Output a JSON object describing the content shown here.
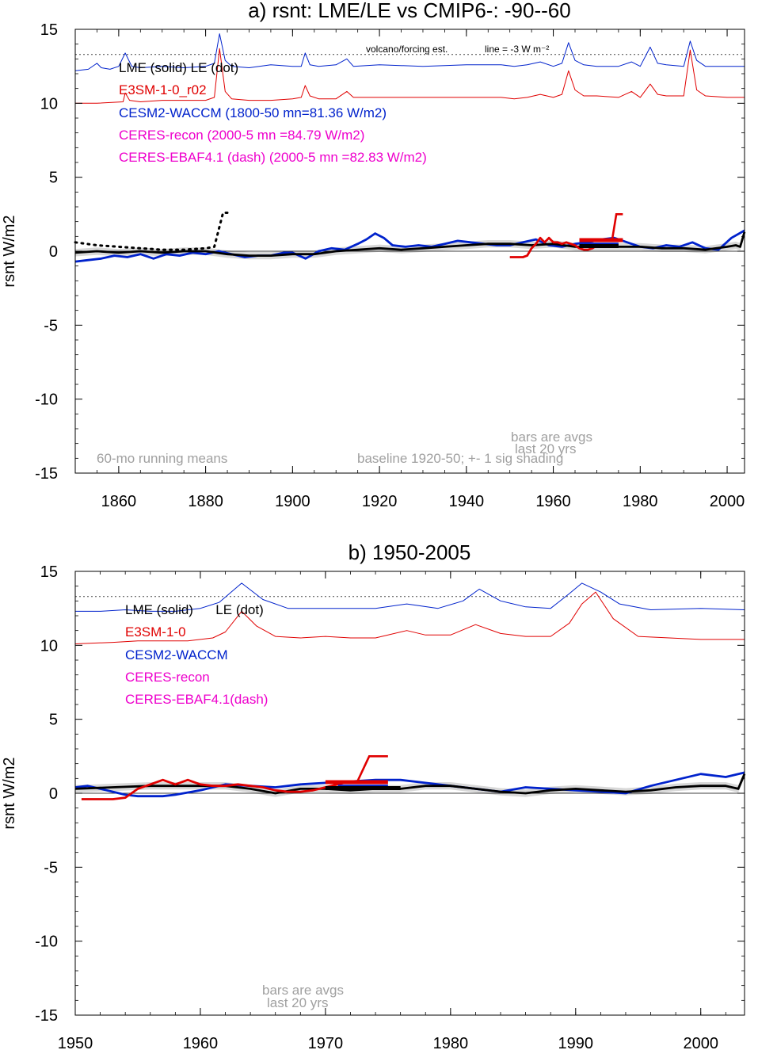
{
  "chart_data": [
    {
      "type": "line",
      "title": "a) rsnt: LME/LE vs CMIP6-: -90--60",
      "ylabel": "rsnt W/m2",
      "xlim": [
        1850,
        2004
      ],
      "ylim": [
        -15,
        15
      ],
      "x_ticks": [
        1860,
        1880,
        1900,
        1920,
        1940,
        1960,
        1980,
        2000
      ],
      "y_ticks": [
        15,
        10,
        5,
        0,
        -5,
        -10,
        -15
      ],
      "reference_line": {
        "value": 13.3,
        "style": "dotted"
      },
      "zero_line": 0,
      "legend": [
        {
          "text": "LME (solid)   LE (dot)",
          "color": "#000000"
        },
        {
          "text": "E3SM-1-0_r02",
          "color": "#e00000"
        },
        {
          "text": "CESM2-WACCM (1800-50 mn=81.36 W/m2)",
          "color": "#0022cc"
        },
        {
          "text": "CERES-recon (2000-5 mn =84.79 W/m2)",
          "color": "#ee00cc"
        },
        {
          "text": "CERES-EBAF4.1 (dash) (2000-5 mn =82.83 W/m2)",
          "color": "#ee00cc"
        }
      ],
      "notes": {
        "volcano": "volcano/forcing est.",
        "line": "line = -3 W m⁻²",
        "running": "60-mo running means",
        "bars1": "bars are avgs",
        "bars2": "last 20 yrs",
        "baseline": "baseline 1920-50; +- 1 sig shading"
      },
      "series": [
        {
          "name": "CESM2-WACCM forcing (thin)",
          "color": "#0022cc",
          "x": [
            1850,
            1853,
            1855,
            1856,
            1858,
            1860,
            1861.5,
            1863,
            1865,
            1870,
            1875,
            1880,
            1882,
            1883.2,
            1884.5,
            1886,
            1890,
            1895,
            1900,
            1902,
            1902.9,
            1904,
            1906,
            1910,
            1912.5,
            1914,
            1920,
            1930,
            1940,
            1948,
            1951,
            1954,
            1957,
            1960,
            1962,
            1963.5,
            1965,
            1967,
            1970,
            1975,
            1978,
            1980,
            1982.3,
            1984,
            1986,
            1990,
            1991.5,
            1993,
            1995,
            2000,
            2004
          ],
          "y": [
            12.2,
            12.3,
            12.7,
            12.4,
            12.3,
            12.5,
            13.4,
            12.5,
            12.4,
            12.5,
            12.4,
            12.5,
            12.7,
            14.7,
            12.9,
            12.5,
            12.4,
            12.6,
            12.5,
            12.5,
            13.4,
            12.6,
            12.5,
            12.6,
            13.0,
            12.5,
            12.6,
            12.5,
            12.6,
            12.6,
            12.5,
            12.6,
            12.8,
            12.5,
            12.7,
            14.1,
            12.9,
            12.6,
            12.5,
            12.5,
            12.8,
            12.5,
            13.8,
            12.7,
            12.6,
            12.5,
            14.2,
            12.9,
            12.5,
            12.5,
            12.5
          ]
        },
        {
          "name": "E3SM-1-0 forcing (thin)",
          "color": "#e00000",
          "x": [
            1850,
            1855,
            1861,
            1861.5,
            1862.5,
            1865,
            1870,
            1875,
            1880,
            1882,
            1883.2,
            1884.5,
            1886,
            1890,
            1895,
            1900,
            1902,
            1902.9,
            1904,
            1906,
            1910,
            1912.5,
            1914,
            1920,
            1930,
            1940,
            1948,
            1951,
            1954,
            1957,
            1960,
            1962,
            1963.5,
            1965,
            1967,
            1970,
            1975,
            1978,
            1980,
            1982.3,
            1984,
            1986,
            1990,
            1991.5,
            1993,
            1995,
            2000,
            2004
          ],
          "y": [
            10.0,
            10.0,
            10.1,
            10.7,
            10.2,
            10.1,
            10.2,
            10.2,
            10.2,
            10.4,
            13.7,
            10.8,
            10.3,
            10.2,
            10.2,
            10.3,
            10.4,
            11.2,
            10.5,
            10.3,
            10.3,
            10.8,
            10.4,
            10.4,
            10.4,
            10.4,
            10.4,
            10.3,
            10.4,
            10.6,
            10.4,
            10.6,
            12.2,
            10.9,
            10.5,
            10.5,
            10.4,
            10.8,
            10.4,
            11.3,
            10.6,
            10.5,
            10.5,
            13.6,
            10.9,
            10.5,
            10.4,
            10.4
          ]
        },
        {
          "name": "CESM2-WACCM",
          "color": "#0022cc",
          "x": [
            1850,
            1853,
            1856,
            1859,
            1862,
            1865,
            1868,
            1871,
            1874,
            1877,
            1880,
            1883,
            1886,
            1889,
            1892,
            1895,
            1898,
            1900,
            1903,
            1906,
            1909,
            1912,
            1915,
            1917,
            1919,
            1921,
            1923,
            1926,
            1929,
            1932,
            1935,
            1938,
            1941,
            1944,
            1947,
            1950,
            1953,
            1956,
            1959,
            1962,
            1965,
            1968,
            1971,
            1974,
            1977,
            1980,
            1983,
            1986,
            1989,
            1992,
            1995,
            1998,
            2001,
            2004
          ],
          "y": [
            -0.7,
            -0.6,
            -0.5,
            -0.3,
            -0.4,
            -0.2,
            -0.5,
            -0.2,
            -0.3,
            -0.1,
            -0.2,
            0.0,
            -0.2,
            -0.4,
            -0.3,
            -0.3,
            -0.1,
            -0.1,
            -0.5,
            0.0,
            0.2,
            0.1,
            0.5,
            0.8,
            1.2,
            0.9,
            0.4,
            0.3,
            0.4,
            0.3,
            0.5,
            0.7,
            0.6,
            0.5,
            0.4,
            0.4,
            0.6,
            0.8,
            0.4,
            0.3,
            0.5,
            0.6,
            0.8,
            0.9,
            0.6,
            0.3,
            0.2,
            0.4,
            0.3,
            0.6,
            0.2,
            0.1,
            0.9,
            1.4
          ]
        },
        {
          "name": "LME",
          "color": "#000000",
          "x": [
            1850,
            1855,
            1860,
            1865,
            1870,
            1875,
            1880,
            1885,
            1890,
            1895,
            1900,
            1905,
            1910,
            1915,
            1920,
            1925,
            1930,
            1935,
            1940,
            1945,
            1950,
            1955,
            1960,
            1965,
            1970,
            1975,
            1980,
            1985,
            1990,
            1995,
            2000,
            2002,
            2003,
            2004
          ],
          "y": [
            -0.1,
            0.0,
            -0.1,
            0.0,
            -0.1,
            0.0,
            0.0,
            -0.2,
            -0.3,
            -0.3,
            -0.2,
            -0.2,
            0.0,
            0.1,
            0.2,
            0.1,
            0.2,
            0.3,
            0.4,
            0.5,
            0.5,
            0.4,
            0.5,
            0.3,
            0.3,
            0.3,
            0.3,
            0.2,
            0.2,
            0.1,
            0.3,
            0.4,
            0.3,
            1.3
          ]
        },
        {
          "name": "LE",
          "color": "#000000",
          "style": "dotted",
          "x": [
            1850,
            1855,
            1860,
            1865,
            1870,
            1875,
            1880,
            1882,
            1884,
            1885
          ],
          "y": [
            0.6,
            0.4,
            0.3,
            0.2,
            0.1,
            0.1,
            0.2,
            0.3,
            2.6,
            2.6
          ]
        },
        {
          "name": "E3SM-1-0_r02",
          "color": "#e00000",
          "x": [
            1950,
            1953,
            1954,
            1955,
            1956,
            1957,
            1958,
            1959,
            1960,
            1961,
            1962,
            1963,
            1964,
            1965,
            1966,
            1967,
            1968,
            1969,
            1970,
            1971
          ],
          "y": [
            -0.4,
            -0.4,
            -0.3,
            0.2,
            0.5,
            0.9,
            0.6,
            0.9,
            0.6,
            0.6,
            0.5,
            0.6,
            0.5,
            0.4,
            0.2,
            0.1,
            0.1,
            0.2,
            0.4,
            0.5
          ]
        }
      ],
      "bars": [
        {
          "color": "#e00000",
          "x": [
            1966,
            1976
          ],
          "y": 0.75
        },
        {
          "color": "#0022cc",
          "x": [
            1967,
            1975
          ],
          "y": 0.45
        },
        {
          "color": "#000000",
          "x": [
            1966,
            1975
          ],
          "y": 0.35
        }
      ],
      "hook": {
        "color": "#e00000",
        "x": [
          1973.5,
          1974.5,
          1976
        ],
        "y": [
          0.7,
          2.5,
          2.5
        ]
      }
    },
    {
      "type": "line",
      "title": "b) 1950-2005",
      "ylabel": "rsnt W/m2",
      "xlim": [
        1950,
        2003.5
      ],
      "ylim": [
        -15,
        15
      ],
      "x_ticks": [
        1950,
        1960,
        1970,
        1980,
        1990,
        2000
      ],
      "y_ticks": [
        15,
        10,
        5,
        0,
        -5,
        -10,
        -15
      ],
      "reference_line": {
        "value": 13.3,
        "style": "dotted"
      },
      "zero_line": 0,
      "legend": [
        {
          "text": "LME (solid)      LE (dot)",
          "color": "#000000"
        },
        {
          "text": "E3SM-1-0",
          "color": "#e00000"
        },
        {
          "text": "CESM2-WACCM",
          "color": "#0022cc"
        },
        {
          "text": "CERES-recon",
          "color": "#ee00cc"
        },
        {
          "text": "CERES-EBAF4.1(dash)",
          "color": "#ee00cc"
        }
      ],
      "notes": {
        "bars1": "bars are avgs",
        "bars2": "last 20 yrs"
      },
      "series": [
        {
          "name": "CESM2-WACCM forcing (thin)",
          "color": "#0022cc",
          "x": [
            1950,
            1952,
            1954,
            1956,
            1958,
            1960,
            1961.5,
            1963.3,
            1965,
            1967,
            1970,
            1974,
            1976.5,
            1979,
            1981,
            1982.3,
            1984,
            1986,
            1988,
            1989.5,
            1990.5,
            1992,
            1993.5,
            1996,
            2000,
            2003.5
          ],
          "y": [
            12.3,
            12.3,
            12.4,
            12.3,
            12.3,
            12.5,
            12.9,
            14.2,
            13.1,
            12.5,
            12.5,
            12.5,
            12.8,
            12.5,
            13.0,
            13.8,
            13.0,
            12.6,
            12.5,
            13.5,
            14.2,
            13.6,
            12.8,
            12.4,
            12.5,
            12.4
          ]
        },
        {
          "name": "E3SM-1-0 forcing (thin)",
          "color": "#e00000",
          "x": [
            1950,
            1953,
            1955,
            1957,
            1959,
            1961,
            1962,
            1963.3,
            1964.5,
            1966,
            1968,
            1970,
            1972,
            1974,
            1976.5,
            1978,
            1980,
            1982,
            1984,
            1986,
            1988,
            1989.5,
            1990.5,
            1991.6,
            1993,
            1995,
            2000,
            2003.5
          ],
          "y": [
            10.1,
            10.2,
            10.3,
            10.3,
            10.3,
            10.5,
            10.9,
            12.3,
            11.3,
            10.6,
            10.5,
            10.6,
            10.5,
            10.5,
            11.0,
            10.7,
            10.7,
            11.4,
            10.8,
            10.6,
            10.6,
            11.5,
            12.8,
            13.6,
            11.8,
            10.6,
            10.4,
            10.4
          ]
        },
        {
          "name": "CESM2-WACCM",
          "color": "#0022cc",
          "x": [
            1950,
            1951,
            1952,
            1953,
            1954,
            1955,
            1956,
            1957,
            1958,
            1960,
            1962,
            1964,
            1966,
            1968,
            1970,
            1972,
            1974,
            1976,
            1978,
            1980,
            1982,
            1984,
            1986,
            1988,
            1990,
            1992,
            1994,
            1996,
            1998,
            2000,
            2002,
            2003.5
          ],
          "y": [
            0.4,
            0.5,
            0.3,
            0.1,
            -0.1,
            -0.2,
            -0.2,
            -0.2,
            -0.1,
            0.2,
            0.6,
            0.5,
            0.4,
            0.6,
            0.7,
            0.8,
            0.9,
            0.9,
            0.7,
            0.5,
            0.3,
            0.1,
            0.4,
            0.3,
            0.2,
            0.1,
            0.0,
            0.5,
            0.9,
            1.3,
            1.1,
            1.4
          ]
        },
        {
          "name": "LME",
          "color": "#000000",
          "x": [
            1950,
            1953,
            1956,
            1959,
            1962,
            1964,
            1966,
            1968,
            1970,
            1972,
            1974,
            1976,
            1978,
            1980,
            1982,
            1984,
            1986,
            1988,
            1990,
            1992,
            1994,
            1996,
            1998,
            2000,
            2002,
            2003,
            2003.5
          ],
          "y": [
            0.3,
            0.4,
            0.5,
            0.5,
            0.5,
            0.3,
            0.0,
            0.3,
            0.3,
            0.2,
            0.3,
            0.3,
            0.5,
            0.5,
            0.3,
            0.1,
            0.0,
            0.2,
            0.3,
            0.2,
            0.1,
            0.2,
            0.4,
            0.5,
            0.5,
            0.3,
            1.3
          ]
        },
        {
          "name": "E3SM-1-0",
          "color": "#e00000",
          "x": [
            1950.5,
            1953,
            1954,
            1955,
            1956,
            1957,
            1958,
            1959,
            1960,
            1961,
            1962,
            1963,
            1964,
            1965,
            1966,
            1967,
            1968,
            1969,
            1970,
            1971,
            1971.5
          ],
          "y": [
            -0.4,
            -0.4,
            -0.3,
            0.3,
            0.6,
            0.9,
            0.6,
            0.9,
            0.6,
            0.5,
            0.5,
            0.6,
            0.5,
            0.4,
            0.2,
            0.1,
            0.1,
            0.2,
            0.4,
            0.6,
            0.7
          ]
        }
      ],
      "bars": [
        {
          "color": "#e00000",
          "x": [
            1970,
            1975
          ],
          "y": 0.75
        },
        {
          "color": "#0022cc",
          "x": [
            1971,
            1975
          ],
          "y": 0.45
        },
        {
          "color": "#000000",
          "x": [
            1970,
            1976
          ],
          "y": 0.35
        }
      ],
      "hook": {
        "color": "#e00000",
        "x": [
          1972.5,
          1973.5,
          1975
        ],
        "y": [
          0.7,
          2.5,
          2.5
        ]
      }
    }
  ]
}
